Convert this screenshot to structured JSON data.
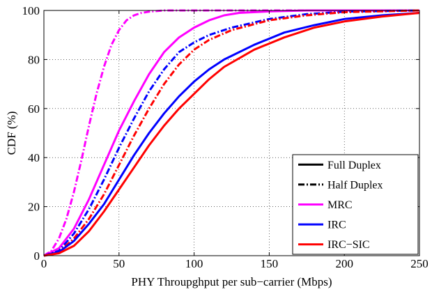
{
  "chart_data": {
    "type": "line",
    "title": "",
    "xlabel": "PHY Throupghput per sub−carrier (Mbps)",
    "ylabel": "CDF (%)",
    "xlim": [
      0,
      250
    ],
    "ylim": [
      0,
      100
    ],
    "xticks": [
      0,
      50,
      100,
      150,
      200,
      250
    ],
    "yticks": [
      0,
      20,
      40,
      60,
      80,
      100
    ],
    "xtick_labels": [
      "0",
      "50",
      "100",
      "150",
      "200",
      "250"
    ],
    "ytick_labels": [
      "0",
      "20",
      "40",
      "60",
      "80",
      "100"
    ],
    "grid": true,
    "legend_position": "bottom-right",
    "legend": [
      {
        "label": "Full Duplex",
        "color": "#000000",
        "style": "solid"
      },
      {
        "label": "Half Duplex",
        "color": "#000000",
        "style": "dashdot"
      },
      {
        "label": "MRC",
        "color": "#ff00ff",
        "style": "solid"
      },
      {
        "label": "IRC",
        "color": "#0000ff",
        "style": "solid"
      },
      {
        "label": "IRC−SIC",
        "color": "#ff0000",
        "style": "solid"
      }
    ],
    "series": [
      {
        "id": "mrc-hd",
        "color": "#ff00ff",
        "style": "dashdot",
        "x": [
          0,
          5,
          10,
          15,
          20,
          25,
          30,
          35,
          40,
          45,
          50,
          55,
          60,
          65,
          70,
          80,
          90,
          100,
          250
        ],
        "y": [
          0,
          2,
          7,
          15,
          26,
          39,
          53,
          66,
          77,
          86,
          92,
          96,
          98,
          99,
          99.5,
          100,
          100,
          100,
          100
        ]
      },
      {
        "id": "mrc-fd",
        "color": "#ff00ff",
        "style": "solid",
        "x": [
          0,
          10,
          20,
          30,
          40,
          50,
          60,
          70,
          80,
          90,
          100,
          110,
          120,
          130,
          150,
          175,
          250
        ],
        "y": [
          0,
          3,
          11,
          23,
          37,
          51,
          63,
          74,
          83,
          89,
          93,
          96,
          98,
          99,
          99.6,
          100,
          100
        ]
      },
      {
        "id": "irc-hd",
        "color": "#0000ff",
        "style": "dashdot",
        "x": [
          0,
          10,
          20,
          30,
          40,
          50,
          60,
          70,
          80,
          90,
          100,
          110,
          125,
          150,
          175,
          200,
          250
        ],
        "y": [
          0,
          2,
          9,
          19,
          31,
          44,
          56,
          67,
          76,
          83,
          87,
          90,
          93,
          96.5,
          98.5,
          99.5,
          100
        ]
      },
      {
        "id": "irc-sic-hd",
        "color": "#ff0000",
        "style": "dashdot",
        "x": [
          0,
          10,
          20,
          30,
          40,
          50,
          60,
          70,
          80,
          90,
          100,
          110,
          125,
          150,
          175,
          200,
          250
        ],
        "y": [
          0,
          1.5,
          7,
          15,
          25,
          37,
          49,
          60,
          70,
          78,
          84,
          88,
          92,
          96,
          98,
          99.3,
          100
        ]
      },
      {
        "id": "irc-fd",
        "color": "#0000ff",
        "style": "solid",
        "x": [
          0,
          10,
          20,
          30,
          40,
          50,
          60,
          70,
          80,
          90,
          100,
          110,
          120,
          140,
          160,
          180,
          200,
          225,
          250
        ],
        "y": [
          0,
          1.5,
          6,
          13,
          21,
          31,
          41,
          50,
          58,
          65,
          71,
          76,
          80,
          86,
          91,
          94,
          96.5,
          98,
          99
        ]
      },
      {
        "id": "irc-sic-fd",
        "color": "#ff0000",
        "style": "solid",
        "x": [
          0,
          10,
          20,
          30,
          40,
          50,
          60,
          70,
          80,
          90,
          100,
          110,
          120,
          140,
          160,
          180,
          200,
          225,
          250
        ],
        "y": [
          0,
          1,
          4,
          10,
          18,
          27,
          36,
          45,
          53,
          60,
          66,
          72,
          77,
          84,
          89,
          93,
          95.5,
          97.5,
          99
        ]
      }
    ]
  }
}
